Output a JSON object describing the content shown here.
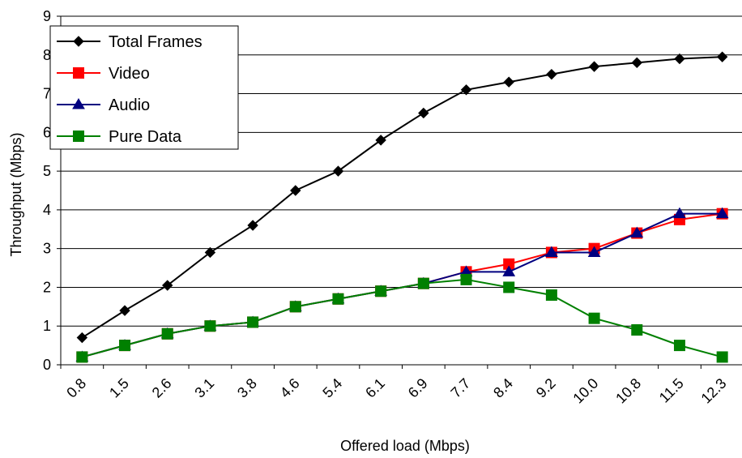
{
  "chart_data": {
    "type": "line",
    "title": "",
    "xlabel": "Offered load (Mbps)",
    "ylabel": "Throughput (Mbps)",
    "categories": [
      "0.8",
      "1.5",
      "2.6",
      "3.1",
      "3.8",
      "4.6",
      "5.4",
      "6.1",
      "6.9",
      "7.7",
      "8.4",
      "9.2",
      "10.0",
      "10.8",
      "11.5",
      "12.3"
    ],
    "ylim": [
      0,
      9
    ],
    "yticks": [
      "0",
      "1",
      "2",
      "3",
      "4",
      "5",
      "6",
      "7",
      "8",
      "9"
    ],
    "grid": true,
    "legend_position": "top-left",
    "series": [
      {
        "name": "Total Frames",
        "color": "#000000",
        "marker": "diamond",
        "values": [
          0.7,
          1.4,
          2.05,
          2.9,
          3.6,
          4.5,
          5.0,
          5.8,
          6.5,
          7.1,
          7.3,
          7.5,
          7.7,
          7.8,
          7.9,
          7.95
        ]
      },
      {
        "name": "Video",
        "color": "#ff0000",
        "marker": "square",
        "values": [
          0.2,
          0.5,
          0.8,
          1.0,
          1.1,
          1.5,
          1.7,
          1.9,
          2.1,
          2.4,
          2.6,
          2.9,
          3.0,
          3.4,
          3.75,
          3.9
        ]
      },
      {
        "name": "Audio",
        "color": "#000080",
        "marker": "triangle",
        "values": [
          0.2,
          0.5,
          0.8,
          1.0,
          1.1,
          1.5,
          1.7,
          1.9,
          2.1,
          2.4,
          2.4,
          2.9,
          2.9,
          3.4,
          3.9,
          3.9
        ]
      },
      {
        "name": "Pure Data",
        "color": "#008000",
        "marker": "square",
        "values": [
          0.2,
          0.5,
          0.8,
          1.0,
          1.1,
          1.5,
          1.7,
          1.9,
          2.1,
          2.2,
          2.0,
          1.8,
          1.2,
          0.9,
          0.5,
          0.2
        ]
      }
    ]
  }
}
